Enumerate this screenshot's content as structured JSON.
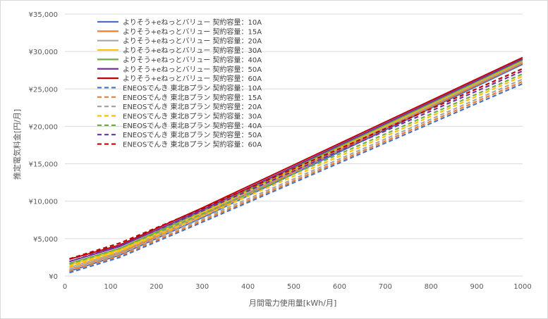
{
  "chart_data": {
    "type": "line",
    "xlabel": "月間電力使用量[kWh/月]",
    "ylabel": "推定電気料金[円/月]",
    "xlim": [
      0,
      1000
    ],
    "ylim": [
      0,
      35000
    ],
    "x_ticks": [
      "0",
      "100",
      "200",
      "300",
      "400",
      "500",
      "600",
      "700",
      "800",
      "900",
      "1000"
    ],
    "y_ticks": [
      "¥0",
      "¥5,000",
      "¥10,000",
      "¥15,000",
      "¥20,000",
      "¥25,000",
      "¥30,000",
      "¥35,000"
    ],
    "grid": "horizontal",
    "legend_position": "top-left",
    "x": [
      10,
      120,
      300,
      1000
    ],
    "series": [
      {
        "name": "よりそう+eねっとバリュー 契約容量：10A",
        "color": "#4472C4",
        "dash": "solid",
        "values": [
          650,
          2800,
          7800,
          28300
        ]
      },
      {
        "name": "よりそう+eねっとバリュー 契約容量：15A",
        "color": "#ED7D31",
        "dash": "solid",
        "values": [
          900,
          3050,
          8050,
          28450
        ]
      },
      {
        "name": "よりそう+eねっとバリュー 契約容量：20A",
        "color": "#A5A5A5",
        "dash": "solid",
        "values": [
          1150,
          3250,
          8250,
          28600
        ]
      },
      {
        "name": "よりそう+eねっとバリュー 契約容量：30A",
        "color": "#FFC000",
        "dash": "solid",
        "values": [
          1450,
          3500,
          8450,
          28750
        ]
      },
      {
        "name": "よりそう+eねっとバリュー 契約容量：40A",
        "color": "#70AD47",
        "dash": "solid",
        "values": [
          1700,
          3700,
          8650,
          28850
        ]
      },
      {
        "name": "よりそう+eねっとバリュー 契約容量：50A",
        "color": "#7030A0",
        "dash": "solid",
        "values": [
          1950,
          3950,
          8850,
          29000
        ]
      },
      {
        "name": "よりそう+eねっとバリュー 契約容量：60A",
        "color": "#C00000",
        "dash": "solid",
        "values": [
          2250,
          4150,
          9100,
          29200
        ]
      },
      {
        "name": "ENEOSでんき 東北Bプラン 契約容量：10A",
        "color": "#4472C4",
        "dash": "dashed",
        "values": [
          450,
          2500,
          7200,
          25700
        ]
      },
      {
        "name": "ENEOSでんき 東北Bプラン 契約容量：15A",
        "color": "#ED7D31",
        "dash": "dashed",
        "values": [
          700,
          2700,
          7400,
          26000
        ]
      },
      {
        "name": "ENEOSでんき 東北Bプラン 契約容量：20A",
        "color": "#A5A5A5",
        "dash": "dashed",
        "values": [
          900,
          2950,
          7650,
          26300
        ]
      },
      {
        "name": "ENEOSでんき 東北Bプラン 契約容量：30A",
        "color": "#FFC000",
        "dash": "dashed",
        "values": [
          1250,
          3350,
          8000,
          26700
        ]
      },
      {
        "name": "ENEOSでんき 東北Bプラン 契約容量：40A",
        "color": "#70AD47",
        "dash": "dashed",
        "values": [
          1600,
          3700,
          8300,
          27000
        ]
      },
      {
        "name": "ENEOSでんき 東北Bプラン 契約容量：50A",
        "color": "#7030A0",
        "dash": "dashed",
        "values": [
          1950,
          4050,
          8700,
          27400
        ]
      },
      {
        "name": "ENEOSでんき 東北Bプラン 契約容量：60A",
        "color": "#C00000",
        "dash": "dashed",
        "values": [
          2300,
          4400,
          9000,
          27700
        ]
      }
    ]
  }
}
